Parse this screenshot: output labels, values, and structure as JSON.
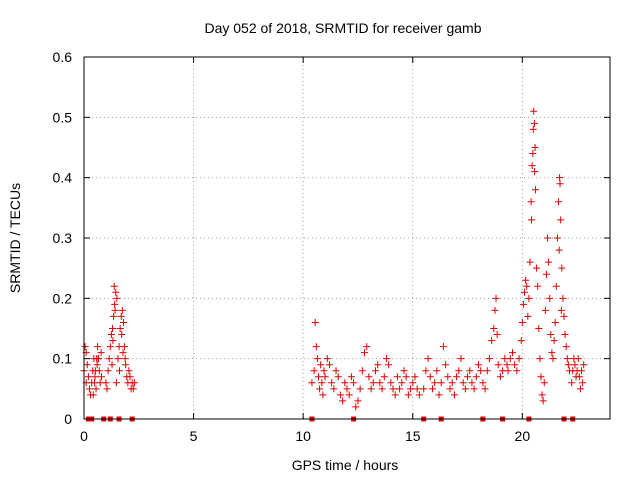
{
  "chart_data": {
    "type": "scatter",
    "title": "Day 052 of 2018, SRMTID for receiver gamb",
    "xlabel": "GPS time / hours",
    "ylabel": "SRMTID / TECUs",
    "xlim": [
      0,
      24
    ],
    "ylim": [
      0,
      0.6
    ],
    "xticks": [
      0,
      5,
      10,
      15,
      20
    ],
    "yticks": [
      0,
      0.1,
      0.2,
      0.3,
      0.4,
      0.5,
      0.6
    ],
    "xtick_labels": [
      "0",
      "5",
      "10",
      "15",
      "20"
    ],
    "ytick_labels": [
      "0",
      "0.1",
      "0.2",
      "0.3",
      "0.4",
      "0.5",
      "0.6"
    ],
    "grid": true,
    "marker": "plus",
    "color": "#e00000",
    "series": [
      {
        "name": "SRMTID",
        "segments": [
          {
            "x_start": 0.0,
            "x_end": 0.7,
            "points": [
              [
                0.05,
                0.12
              ],
              [
                0.1,
                0.11
              ],
              [
                0.15,
                0.09
              ],
              [
                0.2,
                0.07
              ],
              [
                0.25,
                0.05
              ],
              [
                0.3,
                0.04
              ],
              [
                0.35,
                0.06
              ],
              [
                0.4,
                0.08
              ],
              [
                0.45,
                0.1
              ],
              [
                0.5,
                0.07
              ],
              [
                0.55,
                0.05
              ],
              [
                0.6,
                0.09
              ],
              [
                0.65,
                0.1
              ],
              [
                0.0,
                0.08
              ],
              [
                0.1,
                0.06
              ]
            ]
          },
          {
            "x_start": 0.4,
            "x_end": 0.8,
            "points": [
              [
                0.42,
                0.04
              ],
              [
                0.48,
                0.06
              ],
              [
                0.52,
                0.08
              ],
              [
                0.58,
                0.1
              ],
              [
                0.62,
                0.12
              ],
              [
                0.66,
                0.1
              ],
              [
                0.7,
                0.08
              ],
              [
                0.74,
                0.06
              ],
              [
                0.78,
                0.11
              ],
              [
                0.8,
                0.07
              ]
            ]
          },
          {
            "x_start": 1.0,
            "x_end": 1.5,
            "points": [
              [
                1.0,
                0.06
              ],
              [
                1.05,
                0.05
              ],
              [
                1.1,
                0.08
              ],
              [
                1.15,
                0.1
              ],
              [
                1.2,
                0.12
              ],
              [
                1.25,
                0.14
              ],
              [
                1.3,
                0.15
              ],
              [
                1.35,
                0.17
              ],
              [
                1.4,
                0.19
              ],
              [
                1.45,
                0.21
              ],
              [
                1.5,
                0.2
              ],
              [
                1.38,
                0.22
              ],
              [
                1.42,
                0.18
              ],
              [
                1.32,
                0.13
              ],
              [
                1.28,
                0.09
              ],
              [
                1.48,
                0.06
              ]
            ]
          },
          {
            "x_start": 1.5,
            "x_end": 2.4,
            "points": [
              [
                1.55,
                0.1
              ],
              [
                1.6,
                0.12
              ],
              [
                1.65,
                0.15
              ],
              [
                1.7,
                0.17
              ],
              [
                1.75,
                0.18
              ],
              [
                1.8,
                0.16
              ],
              [
                1.85,
                0.12
              ],
              [
                1.9,
                0.09
              ],
              [
                1.95,
                0.07
              ],
              [
                2.0,
                0.06
              ],
              [
                2.05,
                0.08
              ],
              [
                2.1,
                0.07
              ],
              [
                2.15,
                0.05
              ],
              [
                2.2,
                0.06
              ],
              [
                2.25,
                0.05
              ],
              [
                2.3,
                0.06
              ],
              [
                1.72,
                0.14
              ],
              [
                1.78,
                0.11
              ],
              [
                1.88,
                0.1
              ],
              [
                1.62,
                0.08
              ]
            ]
          },
          {
            "x_start": 10.4,
            "x_end": 15.3,
            "points": [
              [
                10.4,
                0.06
              ],
              [
                10.5,
                0.08
              ],
              [
                10.55,
                0.16
              ],
              [
                10.6,
                0.12
              ],
              [
                10.65,
                0.1
              ],
              [
                10.7,
                0.07
              ],
              [
                10.75,
                0.05
              ],
              [
                10.8,
                0.09
              ],
              [
                10.85,
                0.06
              ],
              [
                10.9,
                0.04
              ],
              [
                10.95,
                0.08
              ],
              [
                11.0,
                0.07
              ],
              [
                11.1,
                0.1
              ],
              [
                11.2,
                0.09
              ],
              [
                11.3,
                0.06
              ],
              [
                11.4,
                0.05
              ],
              [
                11.5,
                0.08
              ],
              [
                11.6,
                0.07
              ],
              [
                11.7,
                0.04
              ],
              [
                11.8,
                0.03
              ],
              [
                11.9,
                0.06
              ],
              [
                12.0,
                0.05
              ],
              [
                12.1,
                0.04
              ],
              [
                12.2,
                0.07
              ],
              [
                12.3,
                0.06
              ],
              [
                12.4,
                0.02
              ],
              [
                12.5,
                0.03
              ],
              [
                12.6,
                0.05
              ],
              [
                12.7,
                0.08
              ],
              [
                12.8,
                0.11
              ],
              [
                12.9,
                0.12
              ],
              [
                13.0,
                0.07
              ],
              [
                13.1,
                0.05
              ],
              [
                13.2,
                0.06
              ],
              [
                13.3,
                0.08
              ],
              [
                13.4,
                0.09
              ],
              [
                13.5,
                0.06
              ],
              [
                13.6,
                0.05
              ],
              [
                13.7,
                0.07
              ],
              [
                13.8,
                0.1
              ],
              [
                13.9,
                0.09
              ],
              [
                14.0,
                0.06
              ],
              [
                14.1,
                0.05
              ],
              [
                14.2,
                0.04
              ],
              [
                14.3,
                0.07
              ],
              [
                14.4,
                0.05
              ],
              [
                14.5,
                0.06
              ],
              [
                14.6,
                0.08
              ],
              [
                14.7,
                0.07
              ],
              [
                14.8,
                0.04
              ],
              [
                14.9,
                0.05
              ],
              [
                15.0,
                0.06
              ],
              [
                15.1,
                0.07
              ],
              [
                15.2,
                0.05
              ],
              [
                15.3,
                0.04
              ]
            ]
          },
          {
            "x_start": 15.5,
            "x_end": 19.3,
            "points": [
              [
                15.5,
                0.05
              ],
              [
                15.6,
                0.08
              ],
              [
                15.7,
                0.1
              ],
              [
                15.8,
                0.07
              ],
              [
                15.9,
                0.05
              ],
              [
                16.0,
                0.06
              ],
              [
                16.1,
                0.08
              ],
              [
                16.2,
                0.04
              ],
              [
                16.3,
                0.06
              ],
              [
                16.4,
                0.12
              ],
              [
                16.5,
                0.09
              ],
              [
                16.6,
                0.07
              ],
              [
                16.7,
                0.05
              ],
              [
                16.8,
                0.06
              ],
              [
                16.9,
                0.04
              ],
              [
                17.0,
                0.07
              ],
              [
                17.1,
                0.08
              ],
              [
                17.2,
                0.1
              ],
              [
                17.3,
                0.06
              ],
              [
                17.4,
                0.05
              ],
              [
                17.5,
                0.07
              ],
              [
                17.6,
                0.08
              ],
              [
                17.7,
                0.06
              ],
              [
                17.8,
                0.05
              ],
              [
                17.9,
                0.07
              ],
              [
                18.0,
                0.09
              ],
              [
                18.1,
                0.08
              ],
              [
                18.2,
                0.06
              ],
              [
                18.3,
                0.05
              ],
              [
                18.4,
                0.08
              ],
              [
                18.5,
                0.1
              ],
              [
                18.6,
                0.13
              ],
              [
                18.7,
                0.15
              ],
              [
                18.75,
                0.18
              ],
              [
                18.8,
                0.2
              ],
              [
                18.85,
                0.14
              ],
              [
                18.9,
                0.09
              ],
              [
                19.0,
                0.07
              ],
              [
                19.1,
                0.08
              ],
              [
                19.2,
                0.1
              ],
              [
                19.3,
                0.09
              ]
            ]
          },
          {
            "x_start": 19.3,
            "x_end": 20.6,
            "points": [
              [
                19.35,
                0.08
              ],
              [
                19.45,
                0.1
              ],
              [
                19.55,
                0.11
              ],
              [
                19.65,
                0.09
              ],
              [
                19.75,
                0.08
              ],
              [
                19.85,
                0.1
              ],
              [
                19.95,
                0.13
              ],
              [
                20.0,
                0.16
              ],
              [
                20.05,
                0.19
              ],
              [
                20.1,
                0.21
              ],
              [
                20.15,
                0.23
              ],
              [
                20.2,
                0.22
              ],
              [
                20.25,
                0.17
              ],
              [
                20.3,
                0.2
              ],
              [
                20.35,
                0.26
              ]
            ]
          },
          {
            "x_start": 20.4,
            "x_end": 20.6,
            "points": [
              [
                20.4,
                0.36
              ],
              [
                20.45,
                0.42
              ],
              [
                20.5,
                0.48
              ],
              [
                20.52,
                0.51
              ],
              [
                20.55,
                0.49
              ],
              [
                20.58,
                0.45
              ],
              [
                20.6,
                0.38
              ],
              [
                20.48,
                0.44
              ],
              [
                20.42,
                0.33
              ],
              [
                20.56,
                0.41
              ]
            ]
          },
          {
            "x_start": 20.6,
            "x_end": 21.5,
            "points": [
              [
                20.65,
                0.25
              ],
              [
                20.7,
                0.22
              ],
              [
                20.75,
                0.15
              ],
              [
                20.8,
                0.1
              ],
              [
                20.85,
                0.07
              ],
              [
                20.9,
                0.04
              ],
              [
                20.95,
                0.03
              ],
              [
                21.0,
                0.06
              ],
              [
                21.05,
                0.18
              ],
              [
                21.1,
                0.24
              ],
              [
                21.15,
                0.3
              ],
              [
                21.2,
                0.26
              ],
              [
                21.25,
                0.2
              ],
              [
                21.3,
                0.14
              ],
              [
                21.35,
                0.11
              ],
              [
                21.4,
                0.1
              ],
              [
                21.45,
                0.13
              ],
              [
                21.5,
                0.16
              ]
            ]
          },
          {
            "x_start": 21.5,
            "x_end": 22.2,
            "points": [
              [
                21.55,
                0.22
              ],
              [
                21.6,
                0.3
              ],
              [
                21.65,
                0.36
              ],
              [
                21.7,
                0.4
              ],
              [
                21.72,
                0.39
              ],
              [
                21.75,
                0.33
              ],
              [
                21.8,
                0.25
              ],
              [
                21.85,
                0.2
              ],
              [
                21.9,
                0.17
              ],
              [
                21.95,
                0.14
              ],
              [
                22.0,
                0.12
              ],
              [
                22.05,
                0.1
              ],
              [
                22.1,
                0.09
              ],
              [
                22.15,
                0.08
              ],
              [
                21.68,
                0.28
              ],
              [
                21.78,
                0.18
              ]
            ]
          },
          {
            "x_start": 22.2,
            "x_end": 22.8,
            "points": [
              [
                22.25,
                0.06
              ],
              [
                22.3,
                0.08
              ],
              [
                22.35,
                0.1
              ],
              [
                22.4,
                0.09
              ],
              [
                22.45,
                0.07
              ],
              [
                22.5,
                0.08
              ],
              [
                22.55,
                0.1
              ],
              [
                22.6,
                0.07
              ],
              [
                22.65,
                0.05
              ],
              [
                22.7,
                0.08
              ],
              [
                22.75,
                0.06
              ],
              [
                22.8,
                0.09
              ]
            ]
          }
        ]
      }
    ],
    "gap_markers": [
      0.2,
      0.35,
      0.9,
      1.2,
      1.6,
      2.2,
      10.4,
      12.3,
      15.5,
      16.3,
      18.2,
      19.1,
      20.3,
      21.9,
      22.3
    ]
  }
}
